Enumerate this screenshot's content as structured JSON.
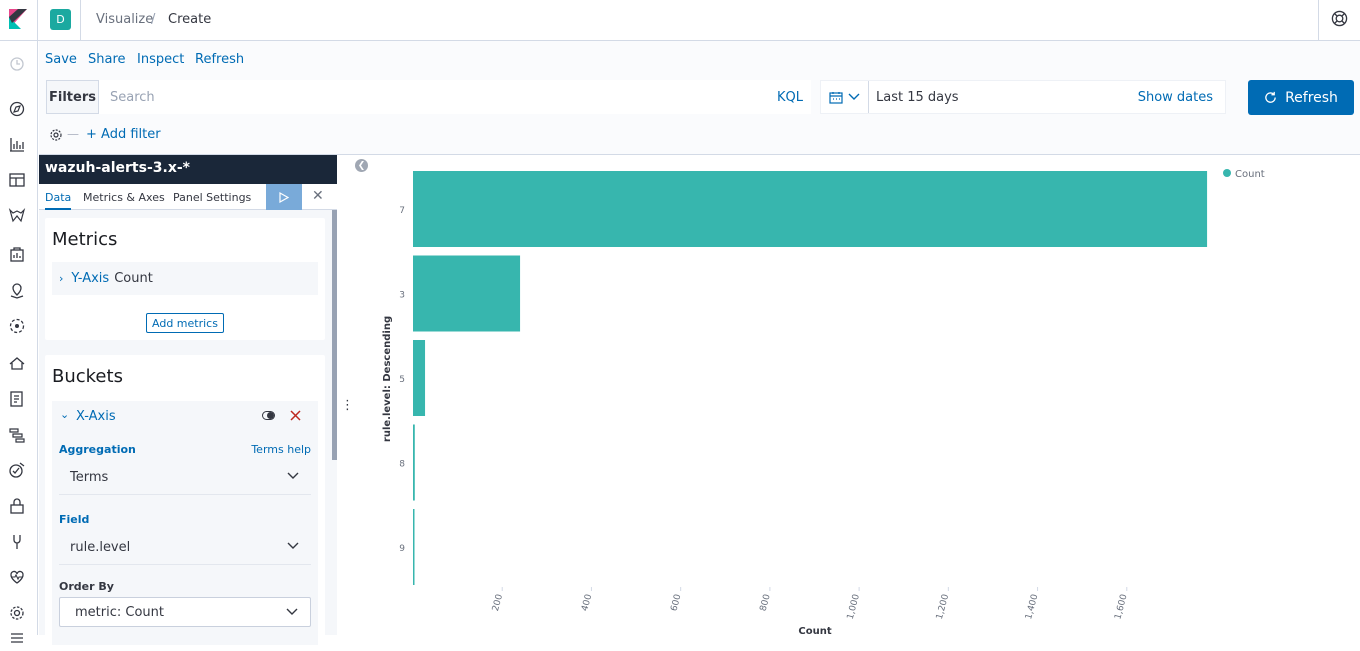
{
  "header": {
    "space_letter": "D",
    "breadcrumbs": [
      "Visualize",
      "/",
      "Create"
    ]
  },
  "toolbar": {
    "links": [
      "Save",
      "Share",
      "Inspect",
      "Refresh"
    ]
  },
  "querybar": {
    "filters_label": "Filters",
    "search_placeholder": "Search",
    "kql_label": "KQL",
    "date_range": "Last 15 days",
    "show_dates": "Show dates",
    "refresh_label": "Refresh",
    "add_filter": "+ Add filter"
  },
  "editor": {
    "index_pattern": "wazuh-alerts-3.x-*",
    "tabs": [
      "Data",
      "Metrics & Axes",
      "Panel Settings"
    ],
    "metrics": {
      "title": "Metrics",
      "agg_axis": "Y-Axis",
      "agg_value": "Count",
      "add_label": "Add metrics"
    },
    "buckets": {
      "title": "Buckets",
      "axis": "X-Axis",
      "aggregation_label": "Aggregation",
      "help_link": "Terms help",
      "aggregation_value": "Terms",
      "field_label": "Field",
      "field_value": "rule.level",
      "order_by_label": "Order By",
      "order_by_value": "metric: Count"
    }
  },
  "colors": {
    "accent": "#006bb4",
    "bar": "#37b6ae",
    "index_header": "#1a2739"
  },
  "chart_data": {
    "type": "bar",
    "orientation": "horizontal",
    "categories": [
      "7",
      "3",
      "5",
      "8",
      "9"
    ],
    "series": [
      {
        "name": "Count",
        "values": [
          1780,
          240,
          27,
          4,
          2
        ]
      }
    ],
    "xlabel": "Count",
    "ylabel": "rule.level: Descending",
    "x_ticks": [
      "200",
      "400",
      "600",
      "800",
      "1,000",
      "1,200",
      "1,400",
      "1,600"
    ],
    "xlim": [
      0,
      1800
    ],
    "legend_position": "top-right"
  }
}
